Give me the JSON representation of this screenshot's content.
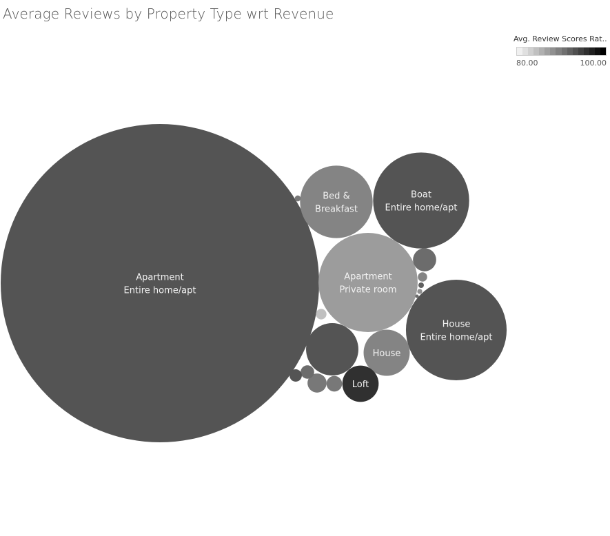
{
  "title": "Average Reviews by Property Type wrt Revenue",
  "legend": {
    "title": "Avg. Review Scores Rat..",
    "min_label": "80.00",
    "max_label": "100.00",
    "color_light": "#f0f0f0",
    "color_dark": "#000000",
    "steps": 16
  },
  "chart_data": {
    "type": "bubble",
    "title": "Average Reviews by Property Type wrt Revenue",
    "size_measure": "Revenue",
    "color_measure": "Avg. Review Scores Rating",
    "color_range": [
      80,
      100
    ],
    "bubbles": [
      {
        "label": [
          "Apartment",
          "Entire home/apt"
        ],
        "revenue": 1000,
        "score": 93
      },
      {
        "label": [
          "Apartment",
          "Private room"
        ],
        "revenue": 97,
        "score": 87
      },
      {
        "label": [
          "House",
          "Entire home/apt"
        ],
        "revenue": 100,
        "score": 93
      },
      {
        "label": [
          "Boat",
          "Entire home/apt"
        ],
        "revenue": 91,
        "score": 93
      },
      {
        "label": [
          "Bed &",
          "Breakfast"
        ],
        "revenue": 52,
        "score": 89
      },
      {
        "label": [
          "House"
        ],
        "revenue": 21,
        "score": 89
      },
      {
        "label": [],
        "revenue": 27,
        "score": 93
      },
      {
        "label": [
          "Loft"
        ],
        "revenue": 13,
        "score": 96
      },
      {
        "label": [],
        "revenue": 5.3,
        "score": 91
      },
      {
        "label": [],
        "revenue": 3.6,
        "score": 90
      },
      {
        "label": [],
        "revenue": 2.4,
        "score": 90
      },
      {
        "label": [],
        "revenue": 1.8,
        "score": 91
      },
      {
        "label": [],
        "revenue": 1.5,
        "score": 93
      },
      {
        "label": [],
        "revenue": 1.1,
        "score": 84
      },
      {
        "label": [],
        "revenue": 0.85,
        "score": 89
      },
      {
        "label": [],
        "revenue": 0.35,
        "score": 90
      },
      {
        "label": [],
        "revenue": 0.3,
        "score": 92
      },
      {
        "label": [],
        "revenue": 0.25,
        "score": 88
      },
      {
        "label": [],
        "revenue": 0.12,
        "score": 91
      }
    ]
  }
}
